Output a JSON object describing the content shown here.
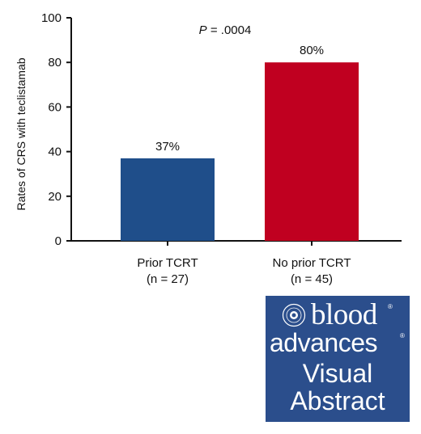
{
  "chart_data": {
    "type": "bar",
    "categories": [
      "Prior TCRT",
      "No prior TCRT"
    ],
    "category_sublabels": [
      "(n = 27)",
      "(n = 45)"
    ],
    "values": [
      37,
      80
    ],
    "data_labels": [
      "37%",
      "80%"
    ],
    "bar_colors": [
      "#1f4e8a",
      "#c00020"
    ],
    "ylabel": "Rates of CRS with teclistamab",
    "xlabel": "",
    "ylim": [
      0,
      100
    ],
    "yticks": [
      0,
      20,
      40,
      60,
      80,
      100
    ],
    "annotation": {
      "italic": "P",
      "text": " = .0004"
    },
    "grid": false
  },
  "logo": {
    "line1": "blood",
    "line2": "advances",
    "line3": "Visual",
    "line4": "Abstract",
    "registered": "®",
    "seal_icon": "society-seal-icon",
    "background": "#2b4e8c"
  }
}
